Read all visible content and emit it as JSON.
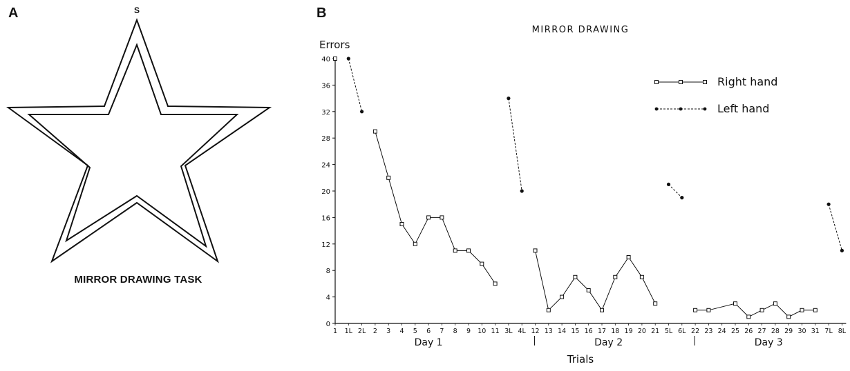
{
  "panel_a": {
    "label": "A",
    "start_marker": "S",
    "caption": "MIRROR DRAWING TASK"
  },
  "panel_b": {
    "label": "B"
  },
  "chart_data": {
    "type": "line",
    "title": "MIRROR DRAWING",
    "ylabel": "Errors",
    "xlabel": "Trials",
    "ylim": [
      0,
      40
    ],
    "yticks": [
      0,
      4,
      8,
      12,
      16,
      20,
      24,
      28,
      32,
      36,
      40
    ],
    "x_tick_labels": [
      "1",
      "1L",
      "2L",
      "2",
      "3",
      "4",
      "5",
      "6",
      "7",
      "8",
      "9",
      "10",
      "11",
      "3L",
      "4L",
      "12",
      "13",
      "14",
      "15",
      "16",
      "17",
      "18",
      "19",
      "20",
      "21",
      "5L",
      "6L",
      "22",
      "23",
      "24",
      "25",
      "26",
      "27",
      "28",
      "29",
      "30",
      "31",
      "7L",
      "8L"
    ],
    "day_labels": [
      "Day 1",
      "Day 2",
      "Day 3"
    ],
    "legend": {
      "placement": "top-right",
      "entries": [
        "Right hand",
        "Left hand"
      ]
    },
    "series": [
      {
        "name": "Right hand",
        "style": "solid-open-square",
        "segments": [
          [
            [
              "1",
              40
            ]
          ],
          [
            [
              "2",
              29
            ],
            [
              "3",
              22
            ],
            [
              "4",
              15
            ],
            [
              "5",
              12
            ],
            [
              "6",
              16
            ],
            [
              "7",
              16
            ],
            [
              "8",
              11
            ],
            [
              "9",
              11
            ],
            [
              "10",
              9
            ],
            [
              "11",
              6
            ]
          ],
          [
            [
              "12",
              11
            ],
            [
              "13",
              2
            ],
            [
              "14",
              4
            ],
            [
              "15",
              7
            ],
            [
              "16",
              5
            ],
            [
              "17",
              2
            ],
            [
              "18",
              7
            ],
            [
              "19",
              10
            ],
            [
              "20",
              7
            ],
            [
              "21",
              3
            ]
          ],
          [
            [
              "22",
              2
            ],
            [
              "23",
              2
            ],
            [
              "25",
              3
            ],
            [
              "26",
              1
            ],
            [
              "27",
              2
            ],
            [
              "28",
              3
            ],
            [
              "29",
              1
            ],
            [
              "30",
              2
            ],
            [
              "31",
              2
            ]
          ]
        ]
      },
      {
        "name": "Left hand",
        "style": "dashed-filled-dot",
        "segments": [
          [
            [
              "1L",
              40
            ],
            [
              "2L",
              32
            ]
          ],
          [
            [
              "3L",
              34
            ],
            [
              "4L",
              20
            ]
          ],
          [
            [
              "5L",
              21
            ],
            [
              "6L",
              19
            ]
          ],
          [
            [
              "7L",
              18
            ],
            [
              "8L",
              11
            ]
          ]
        ]
      }
    ]
  }
}
